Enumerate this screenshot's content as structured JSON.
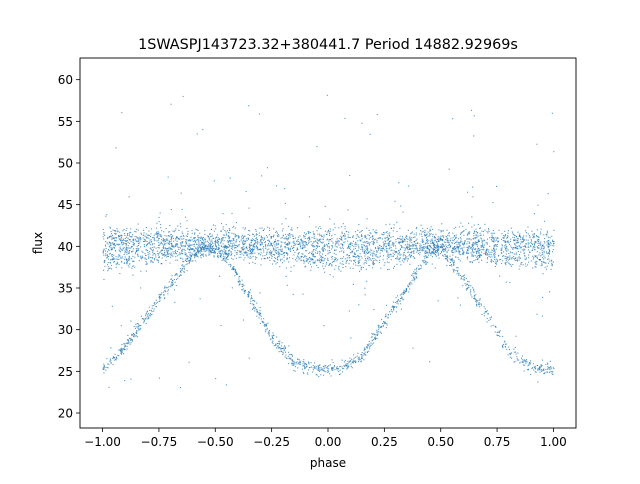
{
  "chart_data": {
    "type": "scatter",
    "title": "1SWASPJ143723.32+380441.7 Period 14882.92969s",
    "xlabel": "phase",
    "ylabel": "flux",
    "xlim": [
      -1.1,
      1.1
    ],
    "ylim": [
      18.2,
      62.6
    ],
    "xticks": [
      -1.0,
      -0.75,
      -0.5,
      -0.25,
      0.0,
      0.25,
      0.5,
      0.75,
      1.0
    ],
    "xtick_labels": [
      "−1.00",
      "−0.75",
      "−0.50",
      "−0.25",
      "0.00",
      "0.25",
      "0.50",
      "0.75",
      "1.00"
    ],
    "yticks": [
      20,
      25,
      30,
      35,
      40,
      45,
      50,
      55,
      60
    ],
    "ytick_labels": [
      "20",
      "25",
      "30",
      "35",
      "40",
      "45",
      "50",
      "55",
      "60"
    ],
    "grid": false,
    "marker_color": "#1f77b4",
    "series": [
      {
        "description_points": [
          [
            -1.0,
            25.3
          ],
          [
            -0.9,
            28.0
          ],
          [
            -0.8,
            32.0
          ],
          [
            -0.7,
            35.5
          ],
          [
            -0.6,
            39.0
          ],
          [
            -0.55,
            40.2
          ],
          [
            -0.45,
            38.5
          ],
          [
            -0.35,
            34.0
          ],
          [
            -0.25,
            29.0
          ],
          [
            -0.15,
            26.2
          ],
          [
            -0.05,
            25.3
          ],
          [
            0.05,
            25.4
          ],
          [
            0.15,
            27.0
          ],
          [
            0.25,
            31.0
          ],
          [
            0.35,
            35.0
          ],
          [
            0.45,
            39.5
          ],
          [
            0.5,
            39.8
          ],
          [
            0.6,
            36.0
          ],
          [
            0.7,
            32.0
          ],
          [
            0.8,
            27.5
          ],
          [
            0.9,
            25.5
          ],
          [
            1.0,
            25.3
          ]
        ]
      },
      {
        "description_points": [
          [
            -1.0,
            40.5
          ],
          [
            -0.5,
            40.6
          ],
          [
            0.0,
            40.5
          ],
          [
            0.5,
            40.6
          ],
          [
            1.0,
            40.5
          ]
        ]
      },
      {
        "description_points": [
          [
            -1.0,
            38.2
          ],
          [
            -0.75,
            38.8
          ],
          [
            -0.5,
            40.0
          ],
          [
            -0.25,
            38.8
          ],
          [
            0.0,
            38.3
          ],
          [
            0.25,
            38.6
          ],
          [
            0.5,
            40.0
          ],
          [
            0.75,
            38.7
          ],
          [
            1.0,
            38.2
          ]
        ]
      }
    ]
  }
}
